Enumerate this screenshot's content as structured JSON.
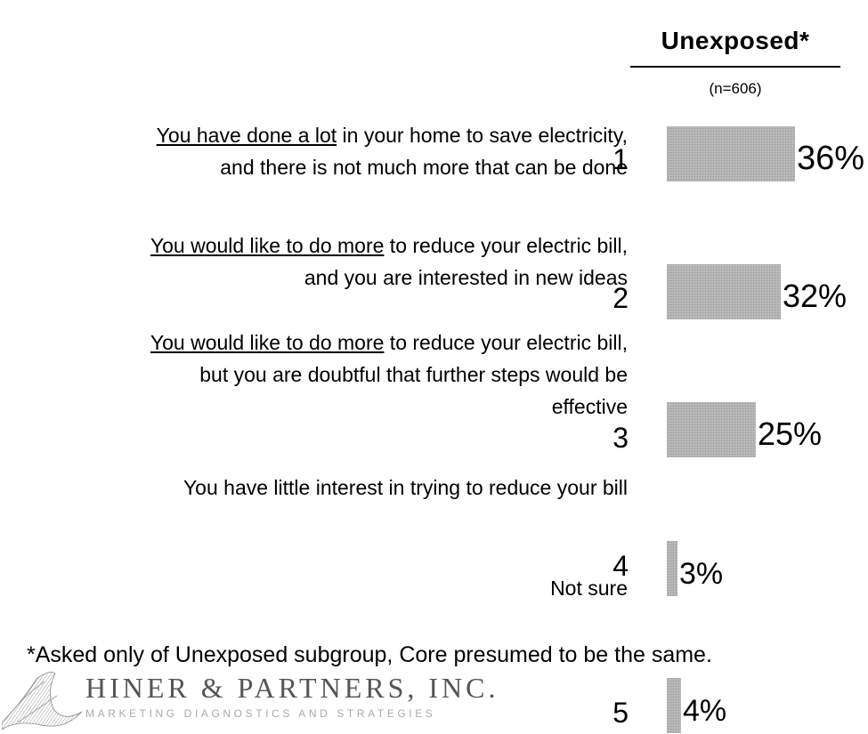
{
  "header": {
    "group": "Unexposed*",
    "sample": "(n=606)"
  },
  "statements": [
    {
      "underlined": "You have done a lot",
      "rest": " in your home to save electricity,",
      "line2": "and there is not much more that can be done"
    },
    {
      "underlined": "You would like to do more",
      "rest": " to reduce your electric bill,",
      "line2": "and you are interested in new ideas"
    },
    {
      "underlined": "You would like to do more",
      "rest": " to reduce your electric bill,",
      "line2": "but you are doubtful that further steps would be",
      "line3": "effective"
    },
    {
      "line1": "You have little interest in trying to reduce your bill"
    }
  ],
  "not_sure_label": "Not sure",
  "footnote": "*Asked only of Unexposed subgroup, Core presumed to be the same.",
  "logo": {
    "name": "HINER & PARTNERS, INC.",
    "tagline": "MARKETING DIAGNOSTICS AND STRATEGIES"
  },
  "colors": {
    "bar": "#b8b8b8"
  },
  "chart_data": {
    "type": "bar",
    "orientation": "horizontal",
    "categories": [
      "1",
      "2",
      "3",
      "4",
      "5"
    ],
    "values": [
      36,
      32,
      25,
      3,
      4
    ],
    "value_labels": [
      "36%",
      "32%",
      "25%",
      "3%",
      "4%"
    ],
    "series": [
      {
        "name": "Unexposed*",
        "values": [
          36,
          32,
          25,
          3,
          4
        ]
      }
    ],
    "xlim": [
      0,
      40
    ]
  }
}
